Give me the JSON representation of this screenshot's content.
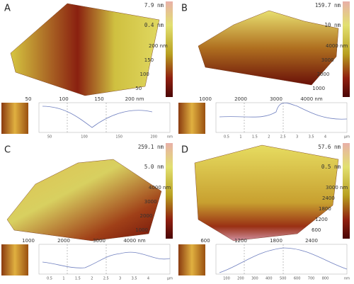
{
  "panels": [
    {
      "label": "A",
      "scale_max": "7.9 nm",
      "scale_min": "0.4 nm",
      "x_axis": [
        "50",
        "100",
        "150",
        "200 nm"
      ],
      "y_axis": [
        "200 nm",
        "150",
        "100",
        "50"
      ],
      "profile_ticks": [
        "50",
        "100",
        "150",
        "200"
      ],
      "profile_unit": "nm"
    },
    {
      "label": "B",
      "scale_max": "159.7 nm",
      "scale_min": "10 nm",
      "x_axis": [
        "1000",
        "2000",
        "3000",
        "4000 nm"
      ],
      "y_axis": [
        "4000 nm",
        "3000",
        "2000",
        "1000"
      ],
      "profile_ticks": [
        "0.5",
        "1",
        "1.5",
        "2",
        "2.5",
        "3",
        "3.5",
        "4"
      ],
      "profile_unit": "μm"
    },
    {
      "label": "C",
      "scale_max": "259.1 nm",
      "scale_min": "5.0 nm",
      "x_axis": [
        "1000",
        "2000",
        "3000",
        "4000 nm"
      ],
      "y_axis": [
        "4000 nm",
        "3000",
        "2000",
        "1000"
      ],
      "profile_ticks": [
        "0.5",
        "1",
        "1.5",
        "2",
        "2.5",
        "3",
        "3.5",
        "4"
      ],
      "profile_unit": "μm"
    },
    {
      "label": "D",
      "scale_max": "57.6 nm",
      "scale_min": "0.5 nm",
      "x_axis": [
        "600",
        "1200",
        "1800",
        "2400"
      ],
      "y_axis": [
        "3000 nm",
        "2400",
        "1800",
        "1200",
        "600"
      ],
      "profile_ticks": [
        "100",
        "200",
        "300",
        "400",
        "500",
        "600",
        "700",
        "800"
      ],
      "profile_unit": "nm"
    }
  ]
}
